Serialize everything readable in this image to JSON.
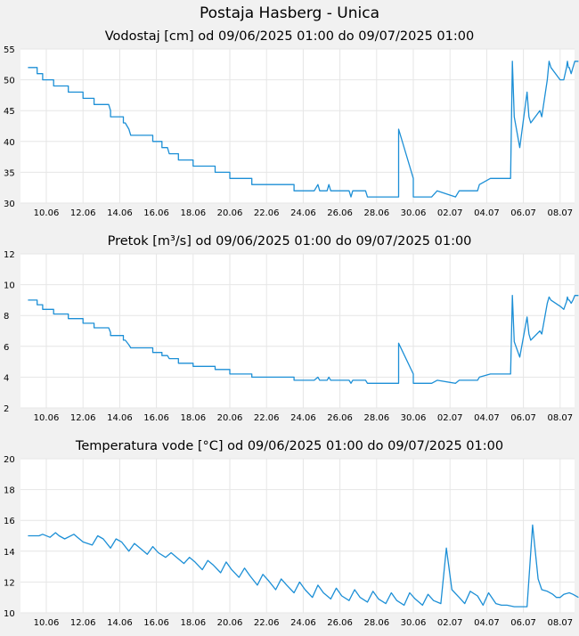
{
  "page": {
    "title": "Postaja Hasberg - Unica"
  },
  "colors": {
    "line": "#1c8fd6",
    "plot_bg": "#ffffff",
    "page_bg": "#f1f1f1",
    "grid": "#e6e6e6"
  },
  "chart_data": [
    {
      "type": "line",
      "title": "Vodostaj [cm] od 09/06/2025 01:00 do 09/07/2025 01:00",
      "x_tick_labels": [
        "10.06",
        "12.06",
        "14.06",
        "16.06",
        "18.06",
        "20.06",
        "22.06",
        "24.06",
        "26.06",
        "28.06",
        "30.06",
        "02.07",
        "04.07",
        "06.07",
        "08.07"
      ],
      "x_range_days": [
        0,
        30
      ],
      "ylim": [
        30,
        55
      ],
      "y_ticks": [
        30,
        35,
        40,
        45,
        50,
        55
      ],
      "grid": true,
      "series": [
        {
          "x": [
            0,
            0.5,
            0.5,
            0.8,
            0.8,
            1.4,
            1.4,
            1.5,
            1.5,
            2.2,
            2.2,
            3.0,
            3.0,
            3.6,
            3.6,
            4.4,
            4.5,
            4.5,
            5.2,
            5.2,
            5.3,
            5.5,
            5.6,
            6.8,
            6.8,
            7.3,
            7.3,
            7.6,
            7.7,
            7.8,
            8.2,
            8.2,
            9.0,
            9.0,
            10.2,
            10.2,
            11.0,
            11.0,
            12.2,
            12.2,
            13.3,
            13.4,
            13.5,
            13.6,
            13.7,
            14.5,
            14.5,
            15.6,
            15.8,
            15.9,
            16.3,
            16.4,
            16.5,
            17.5,
            17.6,
            17.7,
            18.0,
            18.4,
            18.5,
            19.3,
            19.4,
            19.5,
            19.9,
            20.2,
            20.2,
            21.0,
            21.0,
            22.0,
            22.3,
            23.3,
            23.5,
            24.5,
            24.6,
            25.2,
            25.5,
            25.8,
            26.0,
            26.3,
            26.4,
            26.5,
            26.8,
            27.2,
            27.3,
            27.4,
            27.9,
            28.0,
            28.3,
            28.4,
            28.5,
            29.0,
            29.2,
            29.35,
            29.4,
            29.45,
            29.5,
            29.6,
            29.7,
            29.8,
            29.9,
            30.0
          ],
          "y": [
            52,
            52,
            51,
            51,
            50,
            50,
            49,
            49,
            49,
            49,
            48,
            48,
            47,
            47,
            46,
            46,
            45,
            44,
            44,
            43,
            43,
            42,
            41,
            41,
            40,
            40,
            39,
            39,
            38,
            38,
            38,
            37,
            37,
            36,
            36,
            35,
            35,
            34,
            34,
            33,
            33,
            33,
            33,
            33,
            33,
            33,
            32,
            32,
            33,
            32,
            32,
            33,
            32,
            32,
            31,
            32,
            32,
            32,
            31,
            31,
            31,
            31,
            31,
            31,
            42,
            34,
            31,
            31,
            32,
            31,
            32,
            32,
            33,
            34,
            34,
            34,
            34,
            34,
            53,
            44,
            39,
            48,
            44,
            43,
            45,
            44,
            50,
            53,
            52,
            50,
            50,
            52,
            53,
            52,
            52,
            51,
            52,
            53,
            53,
            53
          ]
        }
      ]
    },
    {
      "type": "line",
      "title": "Pretok [m³/s] od 09/06/2025 01:00 do 09/07/2025 01:00",
      "x_tick_labels": [
        "10.06",
        "12.06",
        "14.06",
        "16.06",
        "18.06",
        "20.06",
        "22.06",
        "24.06",
        "26.06",
        "28.06",
        "30.06",
        "02.07",
        "04.07",
        "06.07",
        "08.07"
      ],
      "x_range_days": [
        0,
        30
      ],
      "ylim": [
        2,
        12
      ],
      "y_ticks": [
        2,
        4,
        6,
        8,
        10,
        12
      ],
      "grid": true,
      "series": [
        {
          "x": [
            0,
            0.5,
            0.5,
            0.8,
            0.8,
            1.4,
            1.4,
            1.5,
            1.5,
            2.2,
            2.2,
            3.0,
            3.0,
            3.6,
            3.6,
            4.4,
            4.5,
            4.5,
            5.2,
            5.2,
            5.3,
            5.5,
            5.6,
            6.8,
            6.8,
            7.3,
            7.3,
            7.6,
            7.7,
            7.8,
            8.2,
            8.2,
            9.0,
            9.0,
            10.2,
            10.2,
            11.0,
            11.0,
            12.2,
            12.2,
            13.3,
            13.4,
            13.5,
            13.6,
            13.7,
            14.5,
            14.5,
            15.6,
            15.8,
            15.9,
            16.3,
            16.4,
            16.5,
            17.5,
            17.6,
            17.7,
            18.0,
            18.4,
            18.5,
            19.3,
            19.4,
            19.5,
            19.9,
            20.2,
            20.2,
            21.0,
            21.0,
            22.0,
            22.3,
            23.3,
            23.5,
            24.5,
            24.6,
            25.2,
            25.5,
            25.8,
            26.0,
            26.3,
            26.4,
            26.5,
            26.8,
            27.2,
            27.3,
            27.4,
            27.9,
            28.0,
            28.3,
            28.4,
            28.5,
            29.0,
            29.2,
            29.35,
            29.4,
            29.45,
            29.5,
            29.6,
            29.7,
            29.8,
            29.9,
            30.0
          ],
          "y": [
            9.0,
            9.0,
            8.7,
            8.7,
            8.4,
            8.4,
            8.1,
            8.1,
            8.1,
            8.1,
            7.8,
            7.8,
            7.5,
            7.5,
            7.2,
            7.2,
            6.9,
            6.7,
            6.7,
            6.4,
            6.4,
            6.1,
            5.9,
            5.9,
            5.6,
            5.6,
            5.4,
            5.4,
            5.2,
            5.2,
            5.2,
            4.9,
            4.9,
            4.7,
            4.7,
            4.5,
            4.5,
            4.2,
            4.2,
            4.0,
            4.0,
            4.0,
            4.0,
            4.0,
            4.0,
            4.0,
            3.8,
            3.8,
            4.0,
            3.8,
            3.8,
            4.0,
            3.8,
            3.8,
            3.6,
            3.8,
            3.8,
            3.8,
            3.6,
            3.6,
            3.6,
            3.6,
            3.6,
            3.6,
            6.2,
            4.2,
            3.6,
            3.6,
            3.8,
            3.6,
            3.8,
            3.8,
            4.0,
            4.2,
            4.2,
            4.2,
            4.2,
            4.2,
            9.3,
            6.3,
            5.3,
            7.9,
            6.8,
            6.4,
            7.0,
            6.8,
            8.8,
            9.2,
            9.0,
            8.6,
            8.4,
            8.9,
            9.2,
            9.0,
            9.0,
            8.8,
            9.0,
            9.3,
            9.3,
            9.3
          ]
        }
      ]
    },
    {
      "type": "line",
      "title": "Temperatura vode [°C] od 09/06/2025 01:00 do 09/07/2025 01:00",
      "x_tick_labels": [
        "10.06",
        "12.06",
        "14.06",
        "16.06",
        "18.06",
        "20.06",
        "22.06",
        "24.06",
        "26.06",
        "28.06",
        "30.06",
        "02.07",
        "04.07",
        "06.07",
        "08.07"
      ],
      "x_range_days": [
        0,
        30
      ],
      "ylim": [
        10,
        20
      ],
      "y_ticks": [
        10,
        12,
        14,
        16,
        18,
        20
      ],
      "grid": true,
      "series": [
        {
          "x": [
            0,
            0.6,
            0.8,
            1.2,
            1.5,
            1.7,
            2.0,
            2.5,
            2.7,
            3.0,
            3.5,
            3.8,
            4.1,
            4.5,
            4.8,
            5.1,
            5.5,
            5.8,
            6.1,
            6.5,
            6.8,
            7.1,
            7.5,
            7.8,
            8.1,
            8.5,
            8.8,
            9.1,
            9.5,
            9.8,
            10.1,
            10.5,
            10.8,
            11.1,
            11.5,
            11.8,
            12.1,
            12.5,
            12.8,
            13.1,
            13.5,
            13.8,
            14.1,
            14.5,
            14.8,
            15.1,
            15.5,
            15.8,
            16.1,
            16.5,
            16.8,
            17.1,
            17.5,
            17.8,
            18.1,
            18.5,
            18.8,
            19.1,
            19.5,
            19.8,
            20.1,
            20.5,
            20.8,
            21.1,
            21.5,
            21.8,
            22.1,
            22.5,
            22.8,
            23.1,
            23.5,
            23.8,
            24.1,
            24.5,
            24.8,
            25.1,
            25.5,
            25.8,
            26.1,
            26.5,
            26.8,
            27.2,
            27.5,
            27.8,
            28.0,
            28.3,
            28.6,
            28.8,
            29.0,
            29.2,
            29.5,
            29.7,
            30.0
          ],
          "y": [
            15.0,
            15.0,
            15.1,
            14.9,
            15.2,
            15.0,
            14.8,
            15.1,
            14.9,
            14.6,
            14.4,
            15.0,
            14.8,
            14.2,
            14.8,
            14.6,
            14.0,
            14.5,
            14.2,
            13.8,
            14.3,
            13.9,
            13.6,
            13.9,
            13.6,
            13.2,
            13.6,
            13.3,
            12.8,
            13.4,
            13.1,
            12.6,
            13.3,
            12.8,
            12.3,
            12.9,
            12.4,
            11.8,
            12.5,
            12.1,
            11.5,
            12.2,
            11.8,
            11.3,
            12.0,
            11.5,
            11.0,
            11.8,
            11.3,
            10.9,
            11.6,
            11.1,
            10.8,
            11.5,
            11.0,
            10.7,
            11.4,
            10.9,
            10.6,
            11.3,
            10.8,
            10.5,
            11.3,
            10.9,
            10.5,
            11.2,
            10.8,
            10.6,
            14.2,
            11.5,
            11.0,
            10.6,
            11.4,
            11.1,
            10.5,
            11.3,
            10.6,
            10.5,
            10.5,
            10.4,
            10.4,
            10.4,
            15.7,
            12.2,
            11.5,
            11.4,
            11.2,
            11.0,
            11.0,
            11.2,
            11.3,
            11.2,
            11.0
          ]
        }
      ]
    }
  ]
}
